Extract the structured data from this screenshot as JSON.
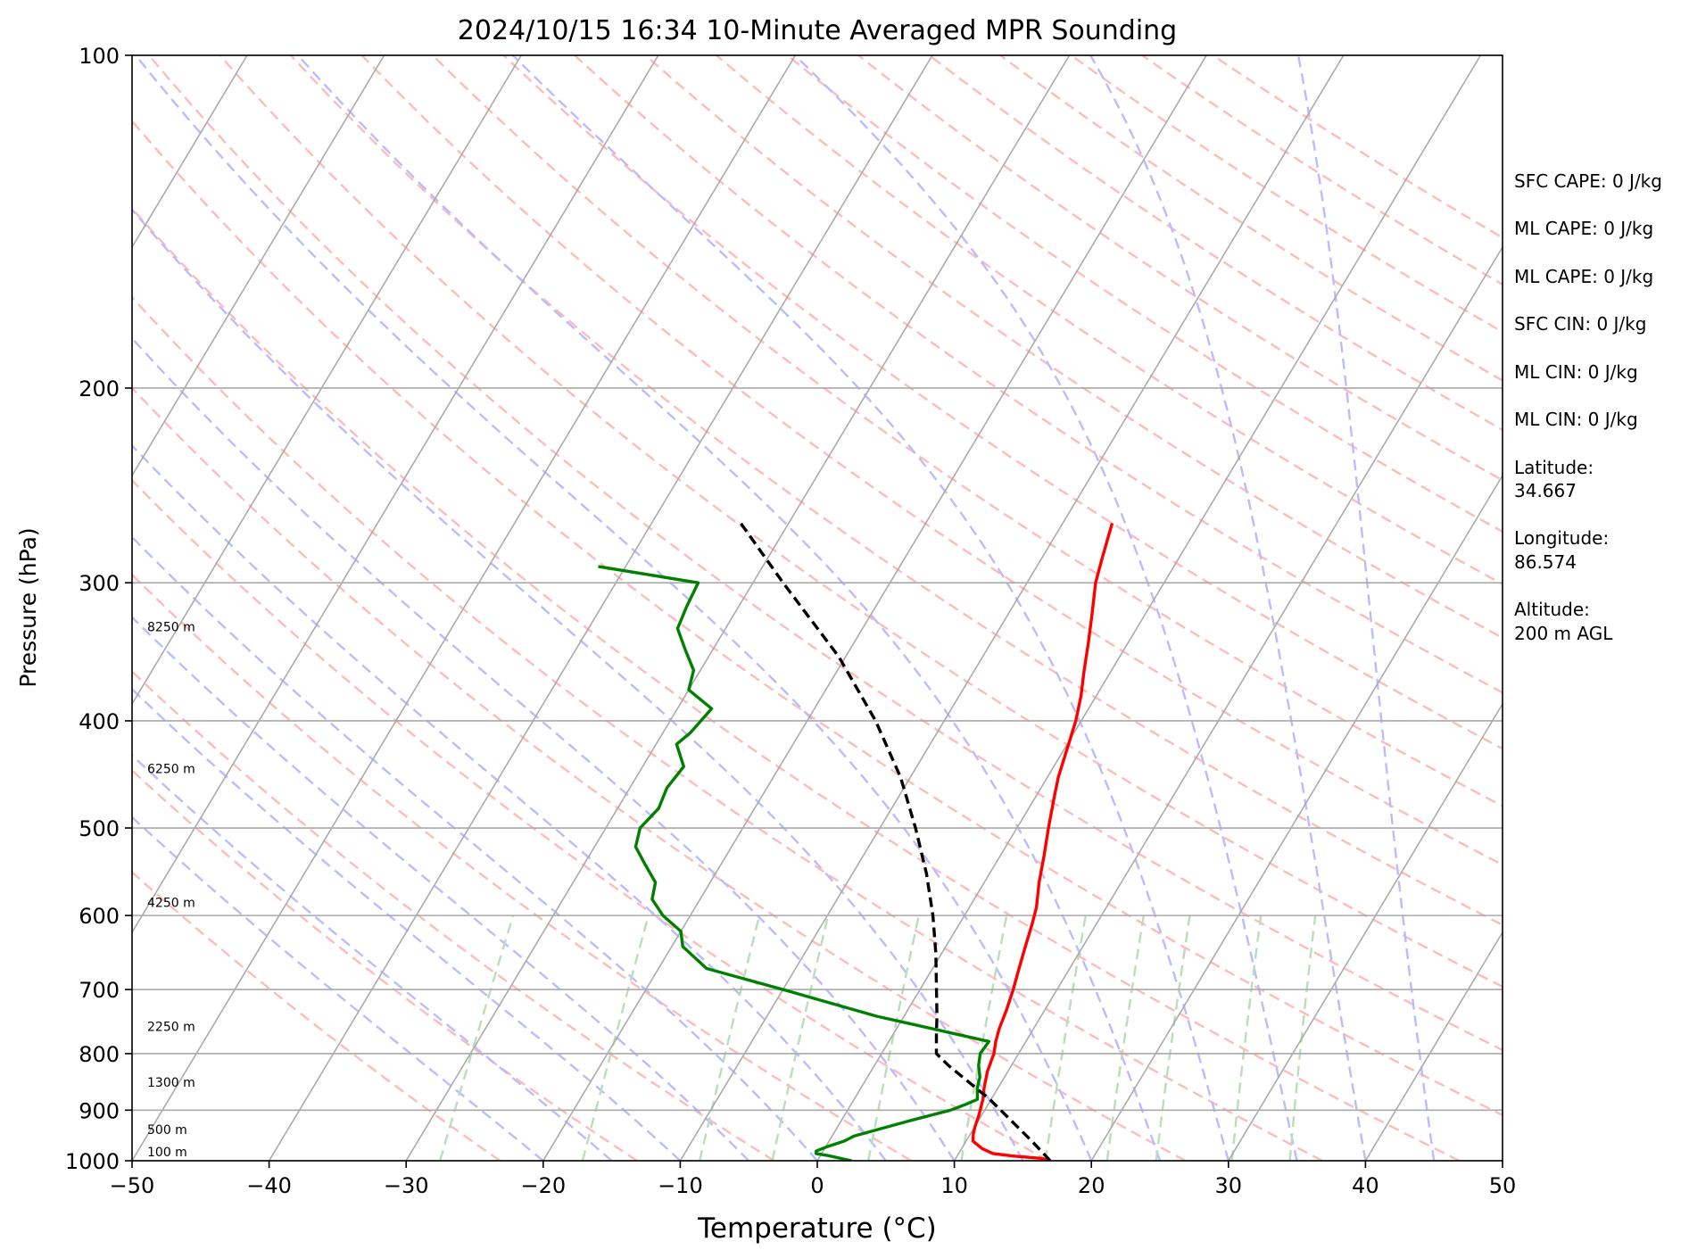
{
  "chart_data": {
    "type": "line",
    "subtype": "skew-t log-p",
    "title": "2024/10/15 16:34 10-Minute Averaged MPR Sounding",
    "xlabel": "Temperature (°C)",
    "ylabel": "Pressure (hPa)",
    "xlim": [
      -50,
      50
    ],
    "ylim": [
      1000,
      100
    ],
    "y_scale": "log",
    "x_ticks": [
      -50,
      -40,
      -30,
      -20,
      -10,
      0,
      10,
      20,
      30,
      40,
      50
    ],
    "x_tick_labels": [
      "−50",
      "−40",
      "−30",
      "−20",
      "−10",
      "0",
      "10",
      "20",
      "30",
      "40",
      "50"
    ],
    "y_ticks": [
      100,
      200,
      300,
      400,
      500,
      600,
      700,
      800,
      900,
      1000
    ],
    "y_tick_labels": [
      "100",
      "200",
      "300",
      "400",
      "500",
      "600",
      "700",
      "800",
      "900",
      "1000"
    ],
    "grid": true,
    "series": [
      {
        "role": "temperature",
        "color": "#ff0000",
        "pressure": [
          1000,
          995,
          990,
          985,
          975,
          960,
          945,
          930,
          910,
          880,
          860,
          830,
          800,
          780,
          760,
          730,
          700,
          670,
          640,
          610,
          590,
          560,
          530,
          500,
          470,
          450,
          420,
          400,
          380,
          360,
          340,
          320,
          300,
          285,
          265
        ],
        "temperature": [
          17.0,
          16.2,
          14.0,
          12.5,
          11.5,
          10.5,
          10.2,
          10.0,
          9.8,
          9.4,
          9.0,
          8.5,
          8.2,
          7.8,
          7.5,
          7.2,
          6.8,
          6.3,
          5.8,
          5.3,
          4.9,
          4.0,
          3.2,
          2.3,
          1.4,
          0.8,
          0.1,
          -0.4,
          -1.1,
          -2.0,
          -2.9,
          -3.9,
          -5.0,
          -5.6,
          -6.4
        ]
      },
      {
        "role": "dewpoint",
        "color": "#008000",
        "pressure": [
          1000,
          990,
          985,
          980,
          970,
          960,
          950,
          940,
          920,
          900,
          890,
          880,
          860,
          840,
          820,
          800,
          780,
          740,
          700,
          670,
          640,
          620,
          600,
          580,
          560,
          540,
          520,
          500,
          480,
          460,
          440,
          420,
          410,
          390,
          375,
          360,
          345,
          330,
          315,
          300,
          290
        ],
        "temperature": [
          2.5,
          0.7,
          -0.4,
          -0.5,
          0.2,
          1.1,
          1.6,
          2.7,
          5.0,
          7.5,
          8.3,
          9.0,
          8.5,
          8.2,
          7.6,
          7.2,
          7.3,
          -2.0,
          -10.0,
          -16.5,
          -19.2,
          -20.0,
          -22.0,
          -23.5,
          -24.0,
          -25.5,
          -27.0,
          -27.5,
          -27.0,
          -27.3,
          -27.0,
          -28.5,
          -28.0,
          -27.5,
          -30.0,
          -30.5,
          -32.0,
          -33.5,
          -33.8,
          -34.0,
          -42.0
        ]
      },
      {
        "role": "parcel",
        "color": "#000000",
        "style": "dashed",
        "pressure": [
          1000,
          960,
          920,
          880,
          850,
          820,
          800,
          770,
          740,
          700,
          650,
          600,
          550,
          500,
          450,
          400,
          350,
          300,
          265
        ],
        "temperature": [
          17.0,
          14.8,
          12.4,
          9.9,
          7.7,
          5.4,
          4.0,
          3.2,
          2.4,
          1.2,
          -0.4,
          -2.3,
          -4.6,
          -7.4,
          -10.7,
          -15.0,
          -20.5,
          -27.8,
          -33.5
        ]
      }
    ],
    "height_labels": [
      {
        "pressure": 1000,
        "label": "100 m"
      },
      {
        "pressure": 955,
        "label": "500 m"
      },
      {
        "pressure": 865,
        "label": "1300 m"
      },
      {
        "pressure": 770,
        "label": "2250 m"
      },
      {
        "pressure": 595,
        "label": "4250 m"
      },
      {
        "pressure": 450,
        "label": "6250 m"
      },
      {
        "pressure": 335,
        "label": "8250 m"
      }
    ],
    "reference_lines": {
      "isotherm_color": "#aaaaaa",
      "dry_adiabat_color": "#ffbbbb",
      "moist_adiabat_color": "#bbbbff",
      "mixing_ratio_color": "#bbddbb"
    }
  },
  "stats": [
    "SFC CAPE: 0 J/kg",
    "ML CAPE: 0 J/kg",
    "ML CAPE: 0 J/kg",
    "SFC CIN: 0 J/kg",
    "ML CIN: 0 J/kg",
    "ML CIN: 0 J/kg"
  ],
  "location": {
    "latitude_label": "Latitude:",
    "latitude_value": "34.667",
    "longitude_label": "Longitude:",
    "longitude_value": "86.574",
    "altitude_label": "Altitude:",
    "altitude_value": "200 m AGL"
  }
}
